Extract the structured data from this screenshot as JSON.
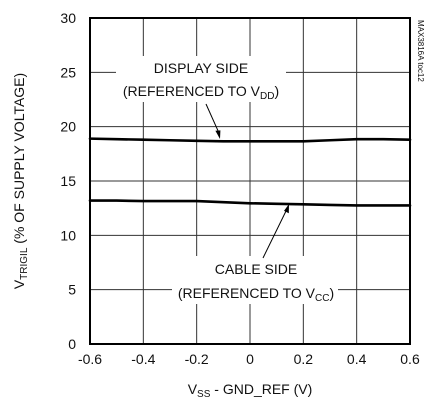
{
  "chart_data": {
    "type": "line",
    "x": [
      -0.6,
      -0.5,
      -0.4,
      -0.3,
      -0.2,
      -0.1,
      0.0,
      0.1,
      0.2,
      0.3,
      0.4,
      0.5,
      0.6
    ],
    "series": [
      {
        "values": [
          18.9,
          18.85,
          18.8,
          18.75,
          18.7,
          18.65,
          18.65,
          18.65,
          18.65,
          18.75,
          18.85,
          18.85,
          18.8
        ]
      },
      {
        "values": [
          13.2,
          13.2,
          13.15,
          13.15,
          13.15,
          13.05,
          12.95,
          12.9,
          12.85,
          12.8,
          12.75,
          12.75,
          12.75
        ]
      }
    ],
    "xlim": [
      -0.6,
      0.6
    ],
    "ylim": [
      0,
      30
    ],
    "xticks": [
      "-0.6",
      "-0.4",
      "-0.2",
      "0",
      "0.2",
      "0.4",
      "0.6"
    ],
    "yticks": [
      "0",
      "5",
      "10",
      "15",
      "20",
      "25",
      "30"
    ],
    "grid": true,
    "xlabel": {
      "main": "V",
      "sub": "SS",
      "rest": " - GND_REF (V)"
    },
    "ylabel": {
      "main": "V",
      "sub": "TRIGIL",
      "rest": " (% OF SUPPLY VOLTAGE)"
    },
    "annotations": {
      "display": {
        "line1": "DISPLAY SIDE",
        "line2_main": "(REFERENCED TO V",
        "line2_sub": "DD",
        "line2_end": ")"
      },
      "cable": {
        "line1": "CABLE SIDE",
        "line2_main": "(REFERENCED TO V",
        "line2_sub": "CC",
        "line2_end": ")"
      }
    },
    "figure_id": "MAX3816A toc12"
  }
}
